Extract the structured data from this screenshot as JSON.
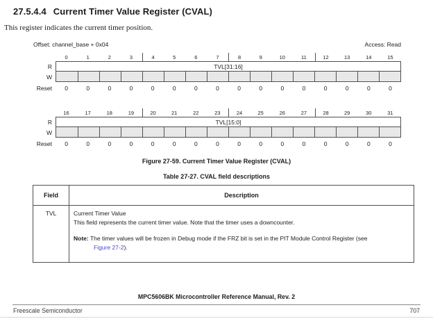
{
  "page": {
    "heading_number": "27.5.4.4",
    "heading_title": "Current Timer Value Register (CVAL)",
    "intro": "This register indicates the current timer position."
  },
  "register_diagram": {
    "offset": "Offset: channel_base + 0x04",
    "access": "Access: Read",
    "row_labels": {
      "r": "R",
      "w": "W",
      "reset": "Reset"
    },
    "banks": [
      {
        "bit_numbers": [
          "0",
          "1",
          "2",
          "3",
          "4",
          "5",
          "6",
          "7",
          "8",
          "9",
          "10",
          "11",
          "12",
          "13",
          "14",
          "15"
        ],
        "field": "TVL[31:16]",
        "reset_values": [
          "0",
          "0",
          "0",
          "0",
          "0",
          "0",
          "0",
          "0",
          "0",
          "0",
          "0",
          "0",
          "0",
          "0",
          "0",
          "0"
        ]
      },
      {
        "bit_numbers": [
          "16",
          "17",
          "18",
          "19",
          "20",
          "21",
          "22",
          "23",
          "24",
          "25",
          "26",
          "27",
          "28",
          "29",
          "30",
          "31"
        ],
        "field": "TVL[15:0]",
        "reset_values": [
          "0",
          "0",
          "0",
          "0",
          "0",
          "0",
          "0",
          "0",
          "0",
          "0",
          "0",
          "0",
          "0",
          "0",
          "0",
          "0"
        ]
      }
    ],
    "figure_caption": "Figure 27-59. Current Timer Value Register (CVAL)"
  },
  "field_table": {
    "caption": "Table 27-27. CVAL field descriptions",
    "headers": [
      "Field",
      "Description"
    ],
    "rows": [
      {
        "field": "TVL",
        "description_title": "Current Timer Value",
        "description_body": "This field represents the current timer value. Note that the timer uses a downcounter.",
        "note_label": "Note:",
        "note_before_link": " The timer values will be frozen in Debug mode if the FRZ bit is set in the PIT Module Control Register (see ",
        "note_link": "Figure 27-2",
        "note_after_link": ")."
      }
    ]
  },
  "footer": {
    "manual_title": "MPC5606BK Microcontroller Reference Manual, Rev. 2",
    "company": "Freescale Semiconductor",
    "page_number": "707"
  },
  "colors": {
    "link": "#4a4ace",
    "w_cell_fill": "#e8e8e8",
    "border": "#4f4f4f"
  }
}
